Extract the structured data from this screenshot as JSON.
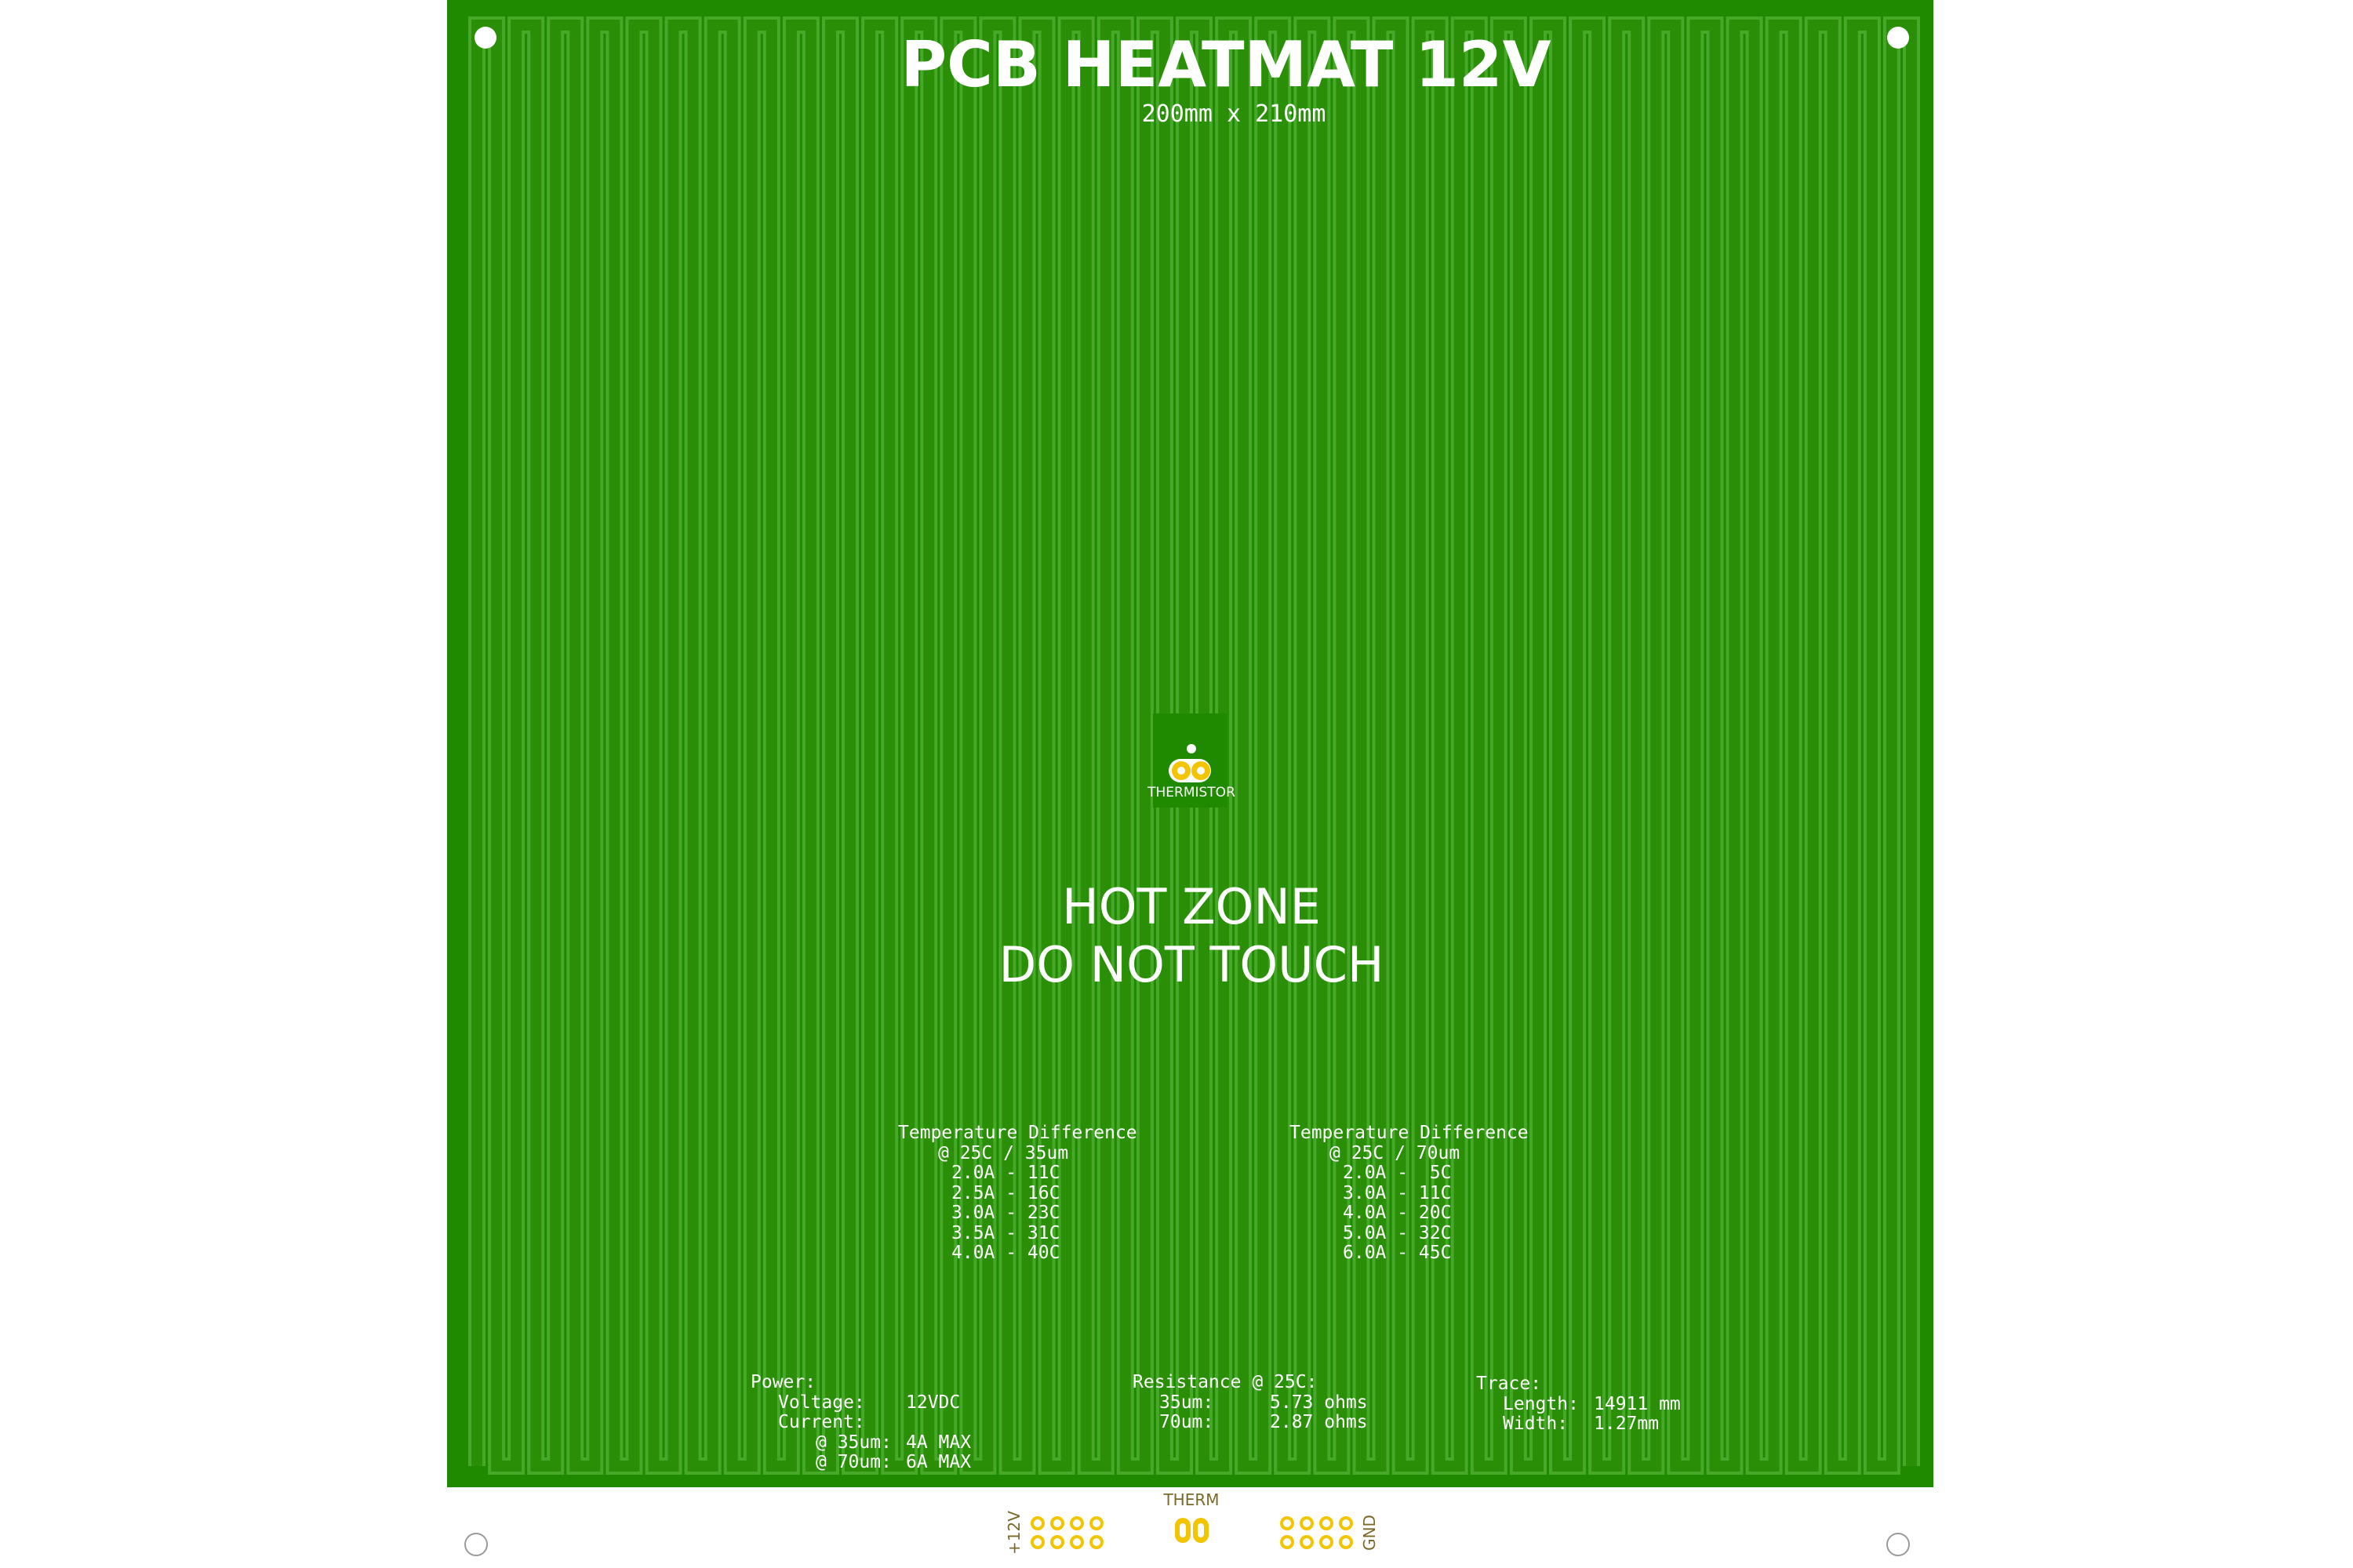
{
  "board": {
    "title": "PCB HEATMAT 12V",
    "subtitle": "200mm x 210mm",
    "thermistor_label": "THERMISTOR",
    "hot_zone": [
      "HOT ZONE",
      "DO NOT TOUCH"
    ],
    "colors": {
      "board": "#1f8a00",
      "trace": "#2a8f06",
      "gap": "#47a82a",
      "silk": "#ffffff",
      "pad": "#f2c500",
      "pad_inner": "#ffffff"
    }
  },
  "temp_tables": [
    {
      "heading": "Temperature Difference",
      "condition": "@ 25C / 35um",
      "rows": [
        "2.0A - 11C",
        "2.5A - 16C",
        "3.0A - 23C",
        "3.5A - 31C",
        "4.0A - 40C"
      ]
    },
    {
      "heading": "Temperature Difference",
      "condition": "@ 25C / 70um",
      "rows": [
        "2.0A -  5C",
        "3.0A - 11C",
        "4.0A - 20C",
        "5.0A - 32C",
        "6.0A - 45C"
      ]
    }
  ],
  "specs": {
    "power": {
      "heading": "Power:",
      "voltage_label": "Voltage:",
      "voltage_value": "12VDC",
      "current_label": "Current:",
      "c35_label": "@ 35um:",
      "c35_value": "4A MAX",
      "c70_label": "@ 70um:",
      "c70_value": "6A MAX"
    },
    "resistance": {
      "heading": "Resistance @ 25C:",
      "r35_label": "35um:",
      "r35_value": "5.73 ohms",
      "r70_label": "70um:",
      "r70_value": "2.87 ohms"
    },
    "trace": {
      "heading": "Trace:",
      "length_label": "Length:",
      "length_value": "14911 mm",
      "width_label": "Width:",
      "width_value": "1.27mm"
    }
  },
  "tab": {
    "plus_label": "+12V",
    "therm_label": "THERM",
    "gnd_label": "GND"
  }
}
